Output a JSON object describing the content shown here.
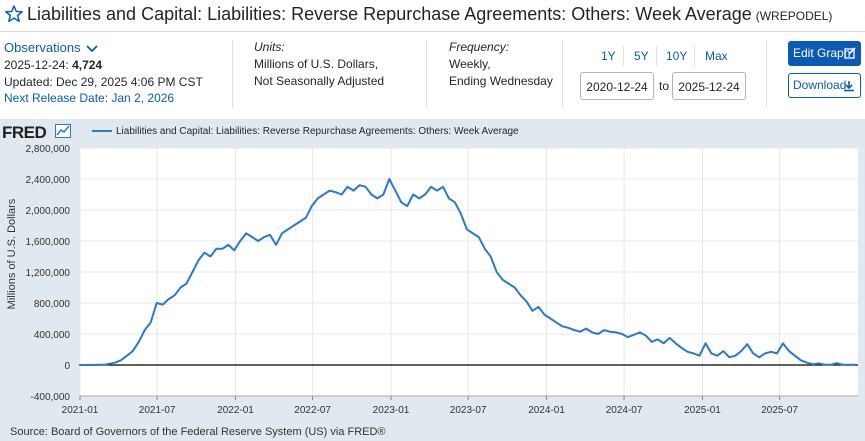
{
  "header": {
    "title": "Liabilities and Capital: Liabilities: Reverse Repurchase Agreements: Others: Week Average",
    "series_code": "(WREPODEL)"
  },
  "observations": {
    "heading": "Observations",
    "date": "2025-12-24:",
    "value": "4,724",
    "updated": "Updated: Dec 29, 2025 4:06 PM CST",
    "next_release": "Next Release Date: Jan 2, 2026"
  },
  "units": {
    "label": "Units:",
    "line1": "Millions of U.S. Dollars,",
    "line2": "Not Seasonally Adjusted"
  },
  "frequency": {
    "label": "Frequency:",
    "line1": "Weekly,",
    "line2": "Ending Wednesday"
  },
  "range_buttons": [
    "1Y",
    "5Y",
    "10Y",
    "Max"
  ],
  "date_range": {
    "start": "2020-12-24",
    "to": "to",
    "end": "2025-12-24"
  },
  "buttons": {
    "edit": "Edit Graph",
    "download": "Download"
  },
  "logo": "FRED",
  "colors": {
    "series": "#2b78cc",
    "accent": "#0b5bb5",
    "plot_bg": "#ffffff",
    "chart_bg": "#e1e9f0"
  },
  "source": "Source: Board of Governors of the Federal Reserve System (US) via FRED®",
  "chart_data": {
    "type": "line",
    "legend": "Liabilities and Capital: Liabilities: Reverse Repurchase Agreements: Others: Week Average",
    "ylabel": "Millions of U.S. Dollars",
    "ylim": [
      -400000,
      2800000
    ],
    "yticks": [
      -400000,
      0,
      400000,
      800000,
      1200000,
      1600000,
      2000000,
      2400000,
      2800000
    ],
    "ytick_labels": [
      "-400,000",
      "0",
      "400,000",
      "800,000",
      "1,200,000",
      "1,600,000",
      "2,000,000",
      "2,400,000",
      "2,800,000"
    ],
    "xlim": [
      "2021-01-01",
      "2026-01-01"
    ],
    "xticks": [
      "2021-01-01",
      "2021-07-01",
      "2022-01-01",
      "2022-07-01",
      "2023-01-01",
      "2023-07-01",
      "2024-01-01",
      "2024-07-01",
      "2025-01-01",
      "2025-07-01"
    ],
    "xtick_labels": [
      "2021-01",
      "2021-07",
      "2022-01",
      "2022-07",
      "2023-01",
      "2023-07",
      "2024-01",
      "2024-07",
      "2025-01",
      "2025-07"
    ],
    "grid": true,
    "legend_position": "top-left",
    "points": [
      [
        "2020-12-30",
        0
      ],
      [
        "2021-02-01",
        0
      ],
      [
        "2021-03-01",
        5000
      ],
      [
        "2021-03-24",
        30000
      ],
      [
        "2021-04-07",
        60000
      ],
      [
        "2021-04-21",
        120000
      ],
      [
        "2021-05-05",
        180000
      ],
      [
        "2021-05-19",
        300000
      ],
      [
        "2021-06-02",
        450000
      ],
      [
        "2021-06-16",
        550000
      ],
      [
        "2021-06-30",
        800000
      ],
      [
        "2021-07-14",
        780000
      ],
      [
        "2021-07-28",
        850000
      ],
      [
        "2021-08-11",
        900000
      ],
      [
        "2021-08-25",
        1000000
      ],
      [
        "2021-09-08",
        1050000
      ],
      [
        "2021-09-22",
        1200000
      ],
      [
        "2021-10-06",
        1350000
      ],
      [
        "2021-10-20",
        1450000
      ],
      [
        "2021-11-03",
        1400000
      ],
      [
        "2021-11-17",
        1500000
      ],
      [
        "2021-12-01",
        1500000
      ],
      [
        "2021-12-15",
        1550000
      ],
      [
        "2021-12-29",
        1480000
      ],
      [
        "2022-01-12",
        1600000
      ],
      [
        "2022-01-26",
        1700000
      ],
      [
        "2022-02-09",
        1650000
      ],
      [
        "2022-02-23",
        1600000
      ],
      [
        "2022-03-09",
        1650000
      ],
      [
        "2022-03-23",
        1680000
      ],
      [
        "2022-04-06",
        1550000
      ],
      [
        "2022-04-20",
        1700000
      ],
      [
        "2022-05-04",
        1750000
      ],
      [
        "2022-05-18",
        1800000
      ],
      [
        "2022-06-01",
        1850000
      ],
      [
        "2022-06-15",
        1900000
      ],
      [
        "2022-06-29",
        2050000
      ],
      [
        "2022-07-13",
        2150000
      ],
      [
        "2022-07-27",
        2200000
      ],
      [
        "2022-08-10",
        2250000
      ],
      [
        "2022-08-24",
        2230000
      ],
      [
        "2022-09-07",
        2200000
      ],
      [
        "2022-09-21",
        2300000
      ],
      [
        "2022-10-05",
        2250000
      ],
      [
        "2022-10-19",
        2320000
      ],
      [
        "2022-11-02",
        2300000
      ],
      [
        "2022-11-16",
        2200000
      ],
      [
        "2022-11-30",
        2150000
      ],
      [
        "2022-12-14",
        2200000
      ],
      [
        "2022-12-28",
        2400000
      ],
      [
        "2023-01-11",
        2250000
      ],
      [
        "2023-01-25",
        2100000
      ],
      [
        "2023-02-08",
        2050000
      ],
      [
        "2023-02-22",
        2200000
      ],
      [
        "2023-03-08",
        2150000
      ],
      [
        "2023-03-22",
        2200000
      ],
      [
        "2023-04-05",
        2300000
      ],
      [
        "2023-04-19",
        2250000
      ],
      [
        "2023-05-03",
        2300000
      ],
      [
        "2023-05-17",
        2150000
      ],
      [
        "2023-05-31",
        2100000
      ],
      [
        "2023-06-14",
        1950000
      ],
      [
        "2023-06-28",
        1750000
      ],
      [
        "2023-07-12",
        1700000
      ],
      [
        "2023-07-26",
        1650000
      ],
      [
        "2023-08-09",
        1500000
      ],
      [
        "2023-08-23",
        1400000
      ],
      [
        "2023-09-06",
        1200000
      ],
      [
        "2023-09-20",
        1100000
      ],
      [
        "2023-10-04",
        1050000
      ],
      [
        "2023-10-18",
        1000000
      ],
      [
        "2023-11-01",
        900000
      ],
      [
        "2023-11-15",
        820000
      ],
      [
        "2023-11-29",
        700000
      ],
      [
        "2023-12-13",
        750000
      ],
      [
        "2023-12-27",
        650000
      ],
      [
        "2024-01-10",
        600000
      ],
      [
        "2024-01-24",
        550000
      ],
      [
        "2024-02-07",
        500000
      ],
      [
        "2024-02-21",
        480000
      ],
      [
        "2024-03-06",
        450000
      ],
      [
        "2024-03-20",
        430000
      ],
      [
        "2024-04-03",
        470000
      ],
      [
        "2024-04-17",
        420000
      ],
      [
        "2024-05-01",
        400000
      ],
      [
        "2024-05-15",
        450000
      ],
      [
        "2024-05-29",
        430000
      ],
      [
        "2024-06-12",
        420000
      ],
      [
        "2024-06-26",
        400000
      ],
      [
        "2024-07-10",
        360000
      ],
      [
        "2024-07-24",
        390000
      ],
      [
        "2024-08-07",
        420000
      ],
      [
        "2024-08-21",
        380000
      ],
      [
        "2024-09-04",
        300000
      ],
      [
        "2024-09-18",
        330000
      ],
      [
        "2024-10-02",
        280000
      ],
      [
        "2024-10-16",
        350000
      ],
      [
        "2024-10-30",
        280000
      ],
      [
        "2024-11-13",
        220000
      ],
      [
        "2024-11-27",
        170000
      ],
      [
        "2024-12-11",
        150000
      ],
      [
        "2024-12-25",
        120000
      ],
      [
        "2025-01-08",
        280000
      ],
      [
        "2025-01-22",
        150000
      ],
      [
        "2025-02-05",
        120000
      ],
      [
        "2025-02-19",
        180000
      ],
      [
        "2025-03-05",
        100000
      ],
      [
        "2025-03-19",
        120000
      ],
      [
        "2025-04-02",
        180000
      ],
      [
        "2025-04-16",
        270000
      ],
      [
        "2025-04-30",
        150000
      ],
      [
        "2025-05-14",
        100000
      ],
      [
        "2025-05-28",
        150000
      ],
      [
        "2025-06-11",
        170000
      ],
      [
        "2025-06-25",
        150000
      ],
      [
        "2025-07-09",
        280000
      ],
      [
        "2025-07-23",
        180000
      ],
      [
        "2025-08-06",
        120000
      ],
      [
        "2025-08-20",
        60000
      ],
      [
        "2025-09-03",
        30000
      ],
      [
        "2025-09-17",
        10000
      ],
      [
        "2025-10-01",
        20000
      ],
      [
        "2025-10-15",
        5000
      ],
      [
        "2025-10-29",
        2000
      ],
      [
        "2025-11-12",
        25000
      ],
      [
        "2025-11-26",
        3000
      ],
      [
        "2025-12-10",
        1000
      ],
      [
        "2025-12-24",
        4724
      ]
    ]
  }
}
